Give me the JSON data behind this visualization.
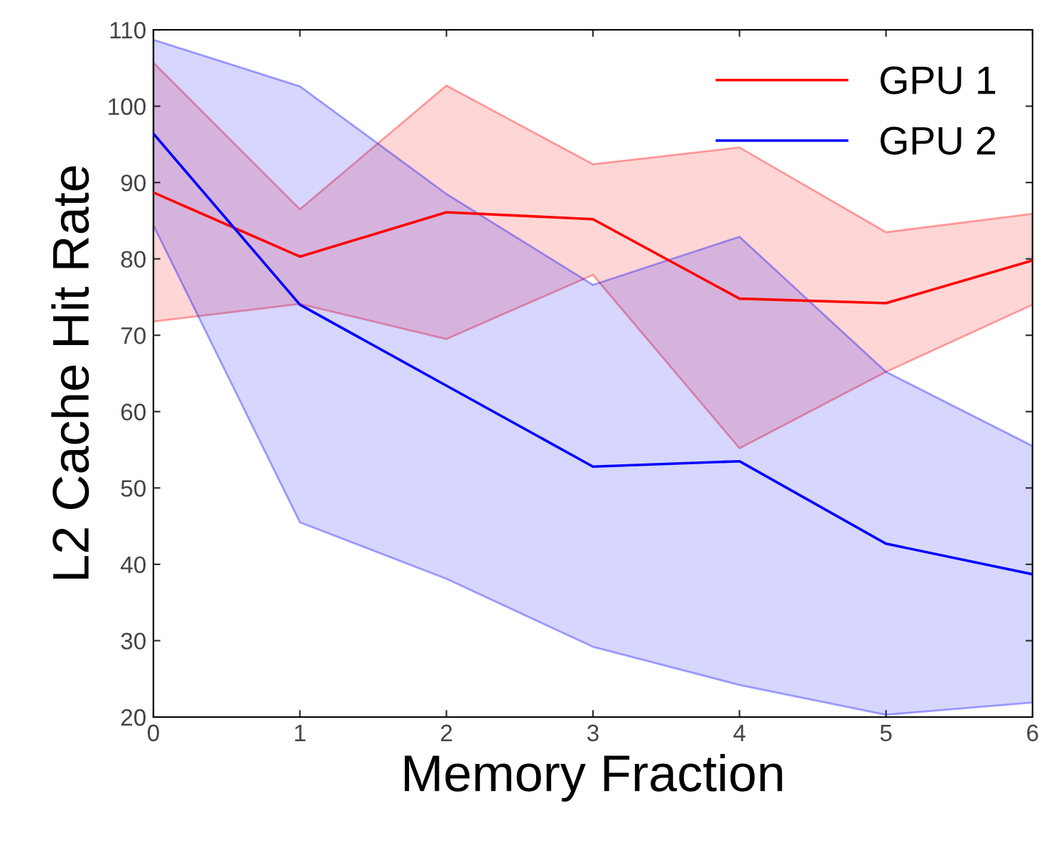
{
  "chart_data": {
    "type": "line",
    "xlabel": "Memory Fraction",
    "ylabel": "L2 Cache Hit Rate",
    "x": [
      0,
      1,
      2,
      3,
      4,
      5,
      6
    ],
    "series": [
      {
        "name": "GPU 1",
        "color": "#ff0000",
        "values": [
          88.7,
          80.3,
          86.1,
          85.2,
          74.8,
          74.2,
          79.8
        ],
        "lower": [
          71.8,
          74.1,
          69.5,
          77.9,
          55.2,
          65.2,
          74.0
        ],
        "upper": [
          105.7,
          86.5,
          102.7,
          92.4,
          94.6,
          83.5,
          85.9
        ]
      },
      {
        "name": "GPU 2",
        "color": "#0000ff",
        "values": [
          96.4,
          74.0,
          63.4,
          52.8,
          53.5,
          42.7,
          38.7
        ],
        "lower": [
          84.4,
          45.5,
          38.1,
          29.2,
          24.2,
          20.3,
          21.9
        ],
        "upper": [
          108.7,
          102.6,
          88.5,
          76.6,
          82.9,
          65.2,
          55.5
        ]
      }
    ],
    "xlim": [
      0,
      6
    ],
    "xticks": [
      0,
      1,
      2,
      3,
      4,
      5,
      6
    ],
    "ylim": [
      20,
      110
    ],
    "yticks": [
      20,
      30,
      40,
      50,
      60,
      70,
      80,
      90,
      100,
      110
    ],
    "grid": false,
    "legend": "top right",
    "marker": "none",
    "line_style": "solid"
  }
}
